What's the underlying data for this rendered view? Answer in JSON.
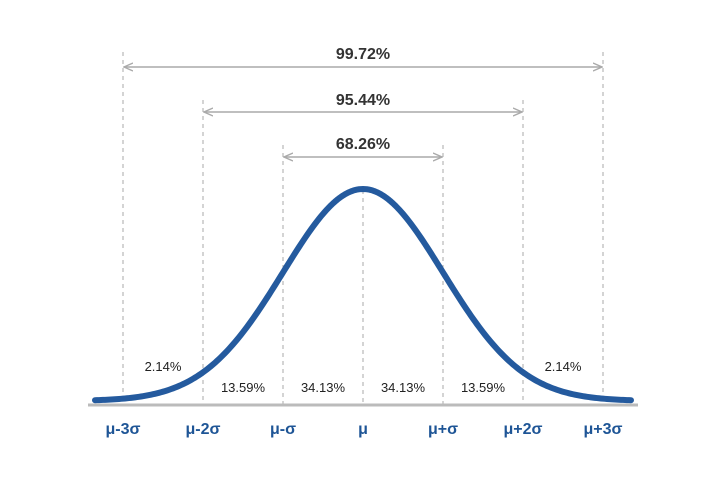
{
  "colors": {
    "curve": "#245A9E",
    "axis_label": "#1E5596",
    "baseline": "#BBBBBB",
    "guide": "#AAAAAA",
    "arrow": "#AAAAAA",
    "text": "#222222"
  },
  "ranges": [
    {
      "label": "99.72%",
      "from": -3,
      "to": 3
    },
    {
      "label": "95.44%",
      "from": -2,
      "to": 2
    },
    {
      "label": "68.26%",
      "from": -1,
      "to": 1
    }
  ],
  "axis_labels": [
    "μ-3σ",
    "μ-2σ",
    "μ-σ",
    "μ",
    "μ+σ",
    "μ+2σ",
    "μ+3σ"
  ],
  "region_labels": {
    "outer_left": "2.14%",
    "mid_left": "13.59%",
    "inner_left": "34.13%",
    "inner_right": "34.13%",
    "mid_right": "13.59%",
    "outer_right": "2.14%"
  }
}
